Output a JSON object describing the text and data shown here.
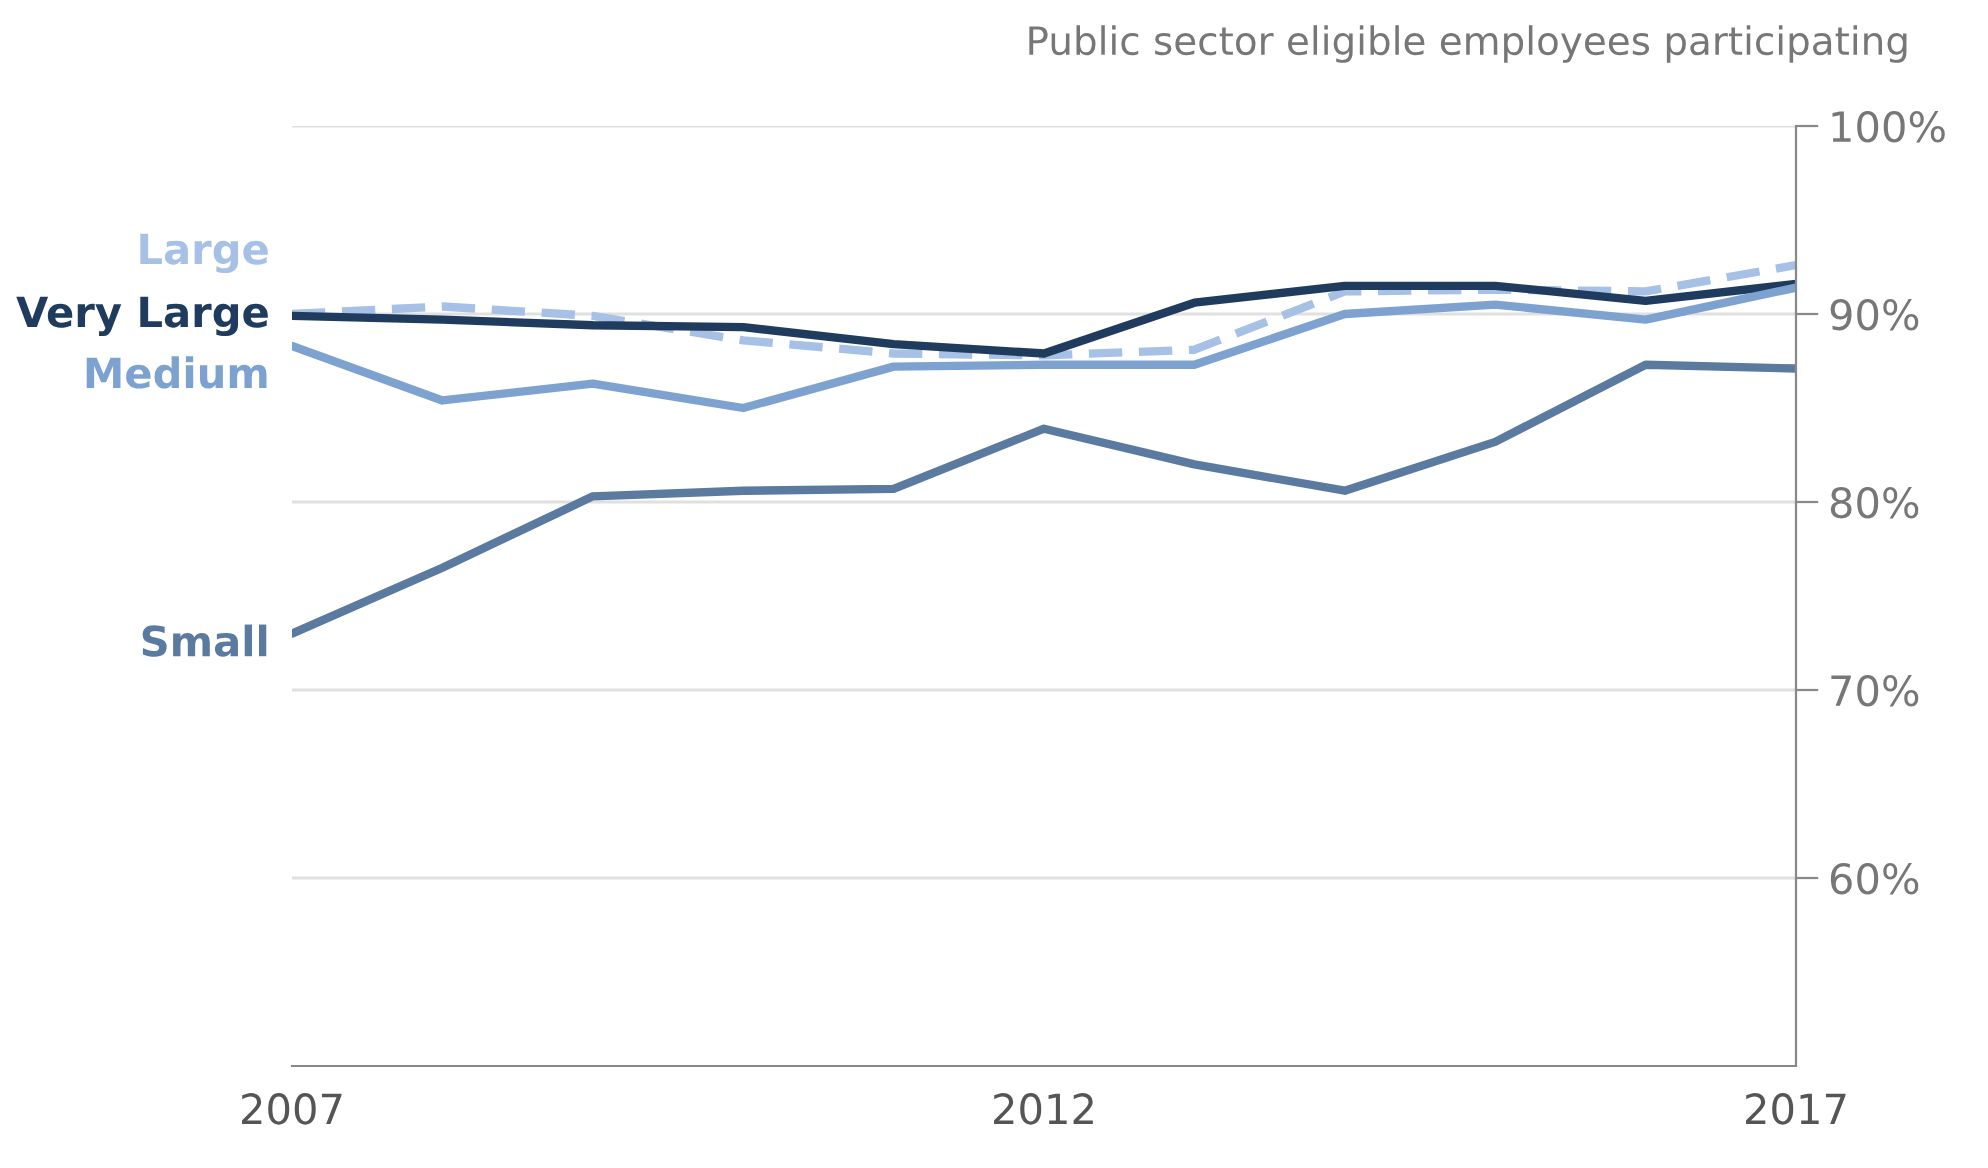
{
  "chart_data": {
    "type": "line",
    "title": "Public sector eligible employees participating",
    "x": [
      2007,
      2008,
      2009,
      2010,
      2011,
      2012,
      2013,
      2014,
      2015,
      2016,
      2017
    ],
    "series": [
      {
        "name": "Large",
        "color": "#a6c1e5",
        "line_style": "dashed",
        "values": [
          90.0,
          90.4,
          89.9,
          88.6,
          87.9,
          87.8,
          88.1,
          91.2,
          91.3,
          91.2,
          92.6
        ]
      },
      {
        "name": "Very Large",
        "color": "#1f3b5e",
        "line_style": "solid",
        "values": [
          89.9,
          89.7,
          89.4,
          89.3,
          88.4,
          87.9,
          90.6,
          91.5,
          91.5,
          90.7,
          91.6
        ]
      },
      {
        "name": "Medium",
        "color": "#7ea2d0",
        "line_style": "solid",
        "values": [
          88.3,
          85.4,
          86.3,
          85.0,
          87.2,
          87.3,
          87.3,
          90.0,
          90.5,
          89.7,
          91.4
        ]
      },
      {
        "name": "Small",
        "color": "#5b7aa0",
        "line_style": "solid",
        "values": [
          73.0,
          76.5,
          80.3,
          80.6,
          80.7,
          83.9,
          82.0,
          80.6,
          83.2,
          87.3,
          87.1
        ]
      }
    ],
    "xlim": [
      2007,
      2017
    ],
    "xticks": [
      2007,
      2012,
      2017
    ],
    "ylim": [
      50,
      100
    ],
    "yticks": [
      {
        "value": 60,
        "label": "60%"
      },
      {
        "value": 70,
        "label": "70%"
      },
      {
        "value": 80,
        "label": "80%"
      },
      {
        "value": 90,
        "label": "90%"
      },
      {
        "value": 100,
        "label": "100%"
      }
    ],
    "grid": "y",
    "legend": false,
    "marker": "none"
  }
}
